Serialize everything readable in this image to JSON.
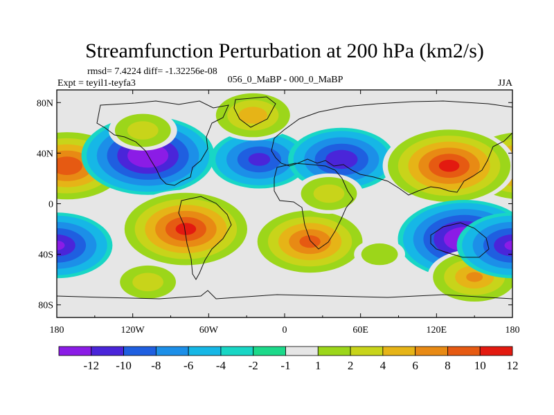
{
  "title": "Streamfunction Perturbation at 200 hPa (km2/s)",
  "stats_line": "rmsd= 7.4224 diff= -1.32256e-08",
  "experiment_line": "Expt = teyil1-teyfa3",
  "comparison_line": "056_0_MaBP - 000_0_MaBP",
  "season": "JJA",
  "chart_data": {
    "type": "heatmap",
    "projection": "cylindrical-equidistant",
    "field": "200 hPa streamfunction perturbation",
    "units": "km2/s",
    "x_range": [
      -180,
      180
    ],
    "y_range": [
      -90,
      90
    ],
    "x_ticks": [
      {
        "value": -180,
        "label": "180"
      },
      {
        "value": -120,
        "label": "120W"
      },
      {
        "value": -60,
        "label": "60W"
      },
      {
        "value": 0,
        "label": "0"
      },
      {
        "value": 60,
        "label": "60E"
      },
      {
        "value": 120,
        "label": "120E"
      },
      {
        "value": 180,
        "label": "180"
      }
    ],
    "y_ticks": [
      {
        "value": 80,
        "label": "80N"
      },
      {
        "value": 40,
        "label": "40N"
      },
      {
        "value": 0,
        "label": "0"
      },
      {
        "value": -40,
        "label": "40S"
      },
      {
        "value": -80,
        "label": "80S"
      }
    ],
    "contour_levels": [
      -12,
      -10,
      -8,
      -6,
      -4,
      -2,
      -1,
      1,
      2,
      4,
      6,
      8,
      10,
      12
    ],
    "colorbar_labels": [
      "-12",
      "-10",
      "-8",
      "-6",
      "-4",
      "-2",
      "-1",
      "1",
      "2",
      "4",
      "6",
      "8",
      "10",
      "12"
    ],
    "colorbar_colors": [
      "#8b1ce6",
      "#4a25d9",
      "#1f5fe0",
      "#1c8fe8",
      "#16b7e6",
      "#18d6c5",
      "#1cd98a",
      "#e6e6e6",
      "#9cd61a",
      "#c8d41a",
      "#e6b417",
      "#e88a14",
      "#e65a12",
      "#e31a10"
    ],
    "features": [
      {
        "name": "Central Pacific positive",
        "lon": -172,
        "lat": 30,
        "value": 11.5
      },
      {
        "name": "Northeast Pacific / North America negative",
        "lon": -108,
        "lat": 38,
        "value": -12.5
      },
      {
        "name": "North Atlantic negative",
        "lon": -20,
        "lat": 35,
        "value": -8.5
      },
      {
        "name": "Europe / Caspian negative",
        "lon": 45,
        "lat": 35,
        "value": -9.5
      },
      {
        "name": "Asia positive",
        "lon": 130,
        "lat": 30,
        "value": 12.5
      },
      {
        "name": "Arctic Eurasia positive",
        "lon": -25,
        "lat": 70,
        "value": 7
      },
      {
        "name": "Western Canada positive",
        "lon": -112,
        "lat": 58,
        "value": 5
      },
      {
        "name": "South America positive",
        "lon": -78,
        "lat": -20,
        "value": 12.5
      },
      {
        "name": "South Atlantic positive",
        "lon": 20,
        "lat": -30,
        "value": 10.5
      },
      {
        "name": "North Africa positive",
        "lon": 35,
        "lat": 8,
        "value": 5
      },
      {
        "name": "Australia negative",
        "lon": 142,
        "lat": -28,
        "value": -12.5
      },
      {
        "name": "Southwest Pacific positive",
        "lon": 150,
        "lat": -58,
        "value": 8
      },
      {
        "name": "South Pacific west negative",
        "lon": -180,
        "lat": -33,
        "value": -10
      },
      {
        "name": "Southeast Pacific positive",
        "lon": -108,
        "lat": -62,
        "value": 5
      },
      {
        "name": "Southern Indian Ocean positive",
        "lon": 75,
        "lat": -40,
        "value": 3
      }
    ]
  }
}
